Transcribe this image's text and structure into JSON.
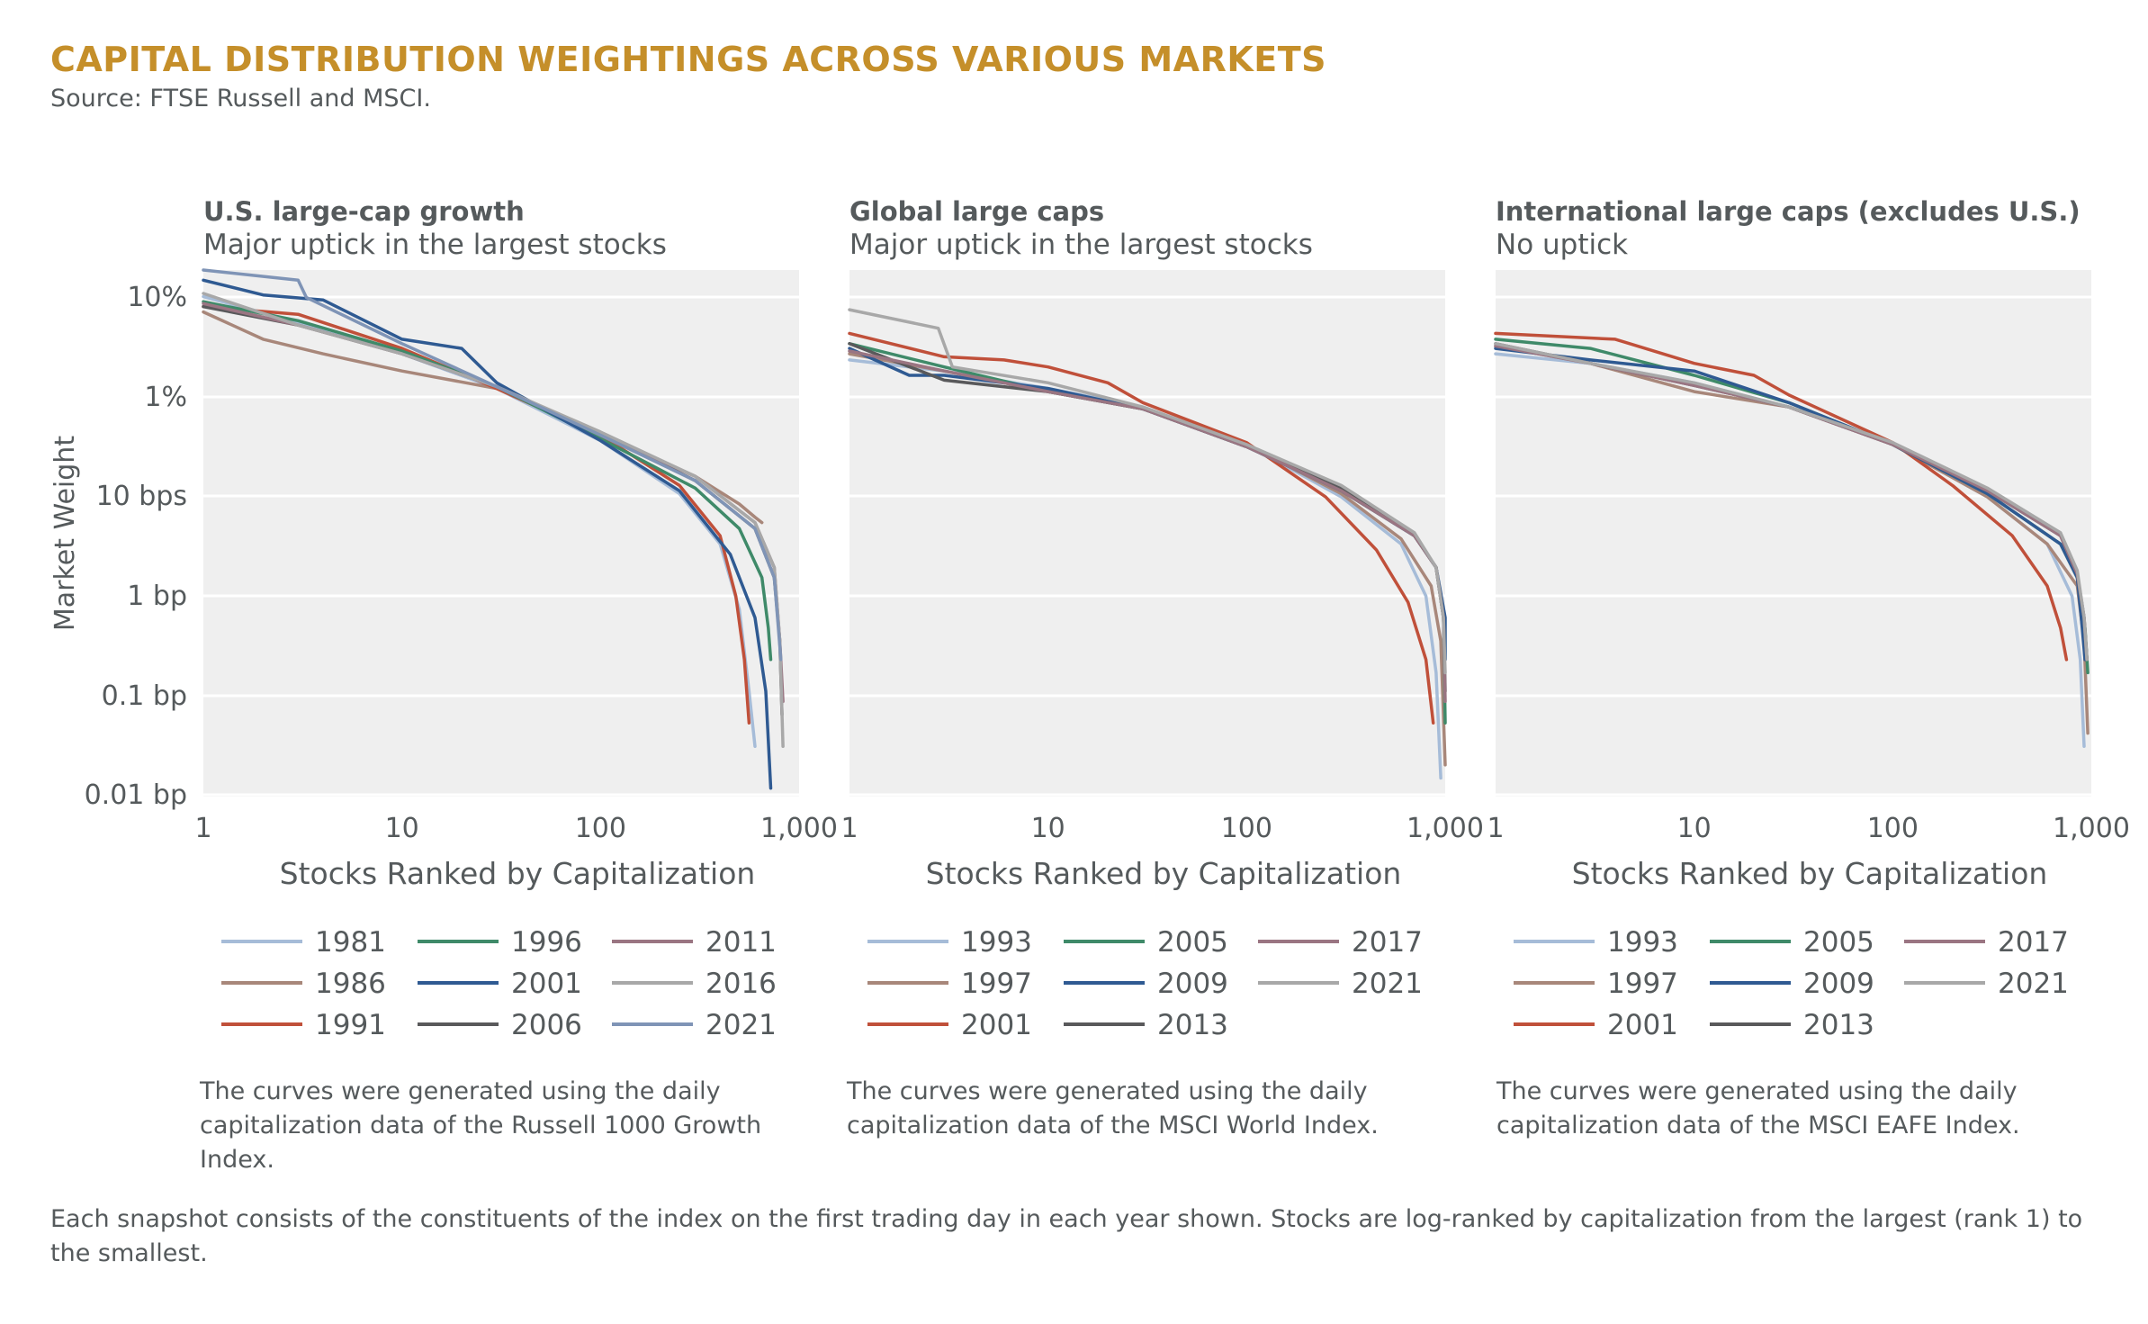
{
  "title": "CAPITAL DISTRIBUTION WEIGHTINGS ACROSS VARIOUS MARKETS",
  "source": "Source: FTSE Russell and MSCI.",
  "footnote": "Each snapshot consists of the constituents of the index on the first trading day in each year shown. Stocks are log-ranked by capitalization from the largest (rank 1) to the smallest.",
  "ylabel": "Market Weight",
  "chart_data": [
    {
      "type": "line",
      "title": "U.S. large-cap growth",
      "subtitle": "Major uptick in the largest stocks",
      "xlabel": "Stocks Ranked by Capitalization",
      "ylabel": "Market Weight",
      "xscale": "log",
      "yscale": "log",
      "xlim": [
        1,
        1000
      ],
      "ylim": [
        1e-06,
        0.1
      ],
      "x_ticks": [
        "1",
        "10",
        "100",
        "1,000"
      ],
      "y_ticks": [
        "10%",
        "1%",
        "10 bps",
        "1 bp",
        "0.1 bp",
        "0.01 bp"
      ],
      "legend_position": "bottom",
      "caption": "The curves were generated using the daily capitalization data of the Russell 1000 Growth Index.",
      "series": [
        {
          "name": "1981",
          "color": "#a6bcd8",
          "x": [
            1,
            3,
            10,
            30,
            100,
            250,
            400,
            500,
            560,
            600
          ],
          "y": [
            0.056,
            0.032,
            0.016,
            0.0075,
            0.0024,
            0.00075,
            0.00025,
            6e-05,
            1e-05,
            3e-06
          ]
        },
        {
          "name": "1986",
          "color": "#a8877a",
          "x": [
            1,
            2,
            4,
            10,
            30,
            100,
            300,
            500,
            600,
            650
          ],
          "y": [
            0.04,
            0.022,
            0.016,
            0.011,
            0.0075,
            0.0028,
            0.0011,
            0.0006,
            0.00045,
            0.0004
          ]
        },
        {
          "name": "1991",
          "color": "#c0503a",
          "x": [
            1,
            3,
            10,
            30,
            100,
            250,
            400,
            480,
            530,
            560
          ],
          "y": [
            0.045,
            0.038,
            0.018,
            0.0075,
            0.0027,
            0.0009,
            0.0003,
            8e-05,
            2e-05,
            5e-06
          ]
        },
        {
          "name": "1996",
          "color": "#3f8a69",
          "x": [
            1,
            3,
            10,
            30,
            100,
            300,
            500,
            650,
            700,
            720
          ],
          "y": [
            0.05,
            0.033,
            0.017,
            0.0078,
            0.0025,
            0.00085,
            0.00035,
            0.00012,
            4e-05,
            2e-05
          ]
        },
        {
          "name": "2001",
          "color": "#2f5a92",
          "x": [
            1,
            2,
            4,
            10,
            20,
            30,
            100,
            250,
            450,
            600,
            680,
            720
          ],
          "y": [
            0.08,
            0.058,
            0.052,
            0.022,
            0.018,
            0.0085,
            0.0024,
            0.0008,
            0.0002,
            5e-05,
            1e-05,
            1.2e-06
          ]
        },
        {
          "name": "2006",
          "color": "#59595b",
          "x": [
            1,
            3,
            10,
            30,
            100,
            300,
            600,
            750,
            800,
            820
          ],
          "y": [
            0.045,
            0.03,
            0.016,
            0.0078,
            0.0028,
            0.001,
            0.00035,
            0.00012,
            3e-05,
            6e-06
          ]
        },
        {
          "name": "2011",
          "color": "#9a7582",
          "x": [
            1,
            3,
            10,
            30,
            100,
            300,
            600,
            750,
            800,
            830
          ],
          "y": [
            0.048,
            0.03,
            0.016,
            0.0078,
            0.0028,
            0.0011,
            0.0004,
            0.00015,
            3e-05,
            8e-06
          ]
        },
        {
          "name": "2016",
          "color": "#a8a8a8",
          "x": [
            1,
            3,
            10,
            30,
            100,
            300,
            600,
            750,
            800,
            830
          ],
          "y": [
            0.06,
            0.03,
            0.016,
            0.0078,
            0.0029,
            0.0011,
            0.0004,
            0.00015,
            3e-05,
            3e-06
          ]
        },
        {
          "name": "2021",
          "color": "#7f94b6",
          "x": [
            1,
            3,
            3.3,
            10,
            30,
            100,
            300,
            600,
            750,
            810
          ],
          "y": [
            0.12,
            0.08,
            0.055,
            0.02,
            0.0078,
            0.0027,
            0.001,
            0.00035,
            0.00012,
            2e-05
          ]
        }
      ]
    },
    {
      "type": "line",
      "title": "Global large caps",
      "subtitle": "Major uptick in the largest stocks",
      "xlabel": "Stocks Ranked by Capitalization",
      "xscale": "log",
      "yscale": "log",
      "xlim": [
        1,
        1000
      ],
      "ylim": [
        1e-06,
        0.1
      ],
      "x_ticks": [
        "1",
        "10",
        "100",
        "1,000"
      ],
      "legend_position": "bottom",
      "caption": "The curves were generated using the daily capitalization data of the MSCI World Index.",
      "series": [
        {
          "name": "1993",
          "color": "#a6bcd8",
          "x": [
            1,
            3,
            10,
            30,
            100,
            300,
            600,
            800,
            900,
            950
          ],
          "y": [
            0.014,
            0.011,
            0.0075,
            0.005,
            0.0022,
            0.0007,
            0.00025,
            8e-05,
            1.5e-05,
            1.5e-06
          ]
        },
        {
          "name": "1997",
          "color": "#a8877a",
          "x": [
            1,
            3,
            10,
            30,
            100,
            300,
            600,
            850,
            950,
            1000
          ],
          "y": [
            0.016,
            0.011,
            0.007,
            0.0048,
            0.0022,
            0.00075,
            0.00028,
            0.0001,
            3e-05,
            2e-06
          ]
        },
        {
          "name": "2001",
          "color": "#c0503a",
          "x": [
            1,
            3,
            6,
            10,
            20,
            30,
            100,
            250,
            450,
            650,
            800,
            870
          ],
          "y": [
            0.025,
            0.015,
            0.014,
            0.012,
            0.0085,
            0.0055,
            0.0023,
            0.0007,
            0.00022,
            7e-05,
            2e-05,
            5e-06
          ]
        },
        {
          "name": "2005",
          "color": "#3f8a69",
          "x": [
            1,
            3,
            10,
            30,
            100,
            300,
            700,
            900,
            980,
            1030
          ],
          "y": [
            0.02,
            0.012,
            0.007,
            0.0048,
            0.0021,
            0.0008,
            0.0003,
            0.00015,
            5e-05,
            5e-06
          ]
        },
        {
          "name": "2009",
          "color": "#2f5a92",
          "x": [
            1,
            2,
            3,
            10,
            30,
            100,
            300,
            700,
            900,
            1000,
            1020
          ],
          "y": [
            0.018,
            0.01,
            0.01,
            0.0075,
            0.0048,
            0.0021,
            0.0008,
            0.0003,
            0.00015,
            5e-05,
            2e-05
          ]
        },
        {
          "name": "2013",
          "color": "#59595b",
          "x": [
            1,
            3,
            10,
            30,
            100,
            300,
            700,
            900,
            980,
            1010
          ],
          "y": [
            0.02,
            0.009,
            0.007,
            0.0048,
            0.0021,
            0.00085,
            0.0003,
            0.00015,
            5e-05,
            1e-05
          ]
        },
        {
          "name": "2017",
          "color": "#9a7582",
          "x": [
            1,
            3,
            10,
            30,
            100,
            300,
            700,
            900,
            980,
            1010
          ],
          "y": [
            0.017,
            0.011,
            0.007,
            0.0048,
            0.0021,
            0.0008,
            0.0003,
            0.00015,
            5e-05,
            8e-06
          ]
        },
        {
          "name": "2021",
          "color": "#a8a8a8",
          "x": [
            1,
            2.8,
            3.3,
            10,
            30,
            100,
            300,
            700,
            900,
            980,
            1010
          ],
          "y": [
            0.042,
            0.028,
            0.012,
            0.0085,
            0.005,
            0.0022,
            0.0009,
            0.00032,
            0.00015,
            5e-05,
            1.5e-05
          ]
        }
      ]
    },
    {
      "type": "line",
      "title": "International large caps (excludes U.S.)",
      "subtitle": "No uptick",
      "xlabel": "Stocks Ranked by Capitalization",
      "xscale": "log",
      "yscale": "log",
      "xlim": [
        1,
        1000
      ],
      "ylim": [
        1e-06,
        0.1
      ],
      "x_ticks": [
        "1",
        "10",
        "100",
        "1,000"
      ],
      "legend_position": "bottom",
      "caption": "The curves were generated using the daily capitalization data of the MSCI EAFE Index.",
      "series": [
        {
          "name": "1993",
          "color": "#a6bcd8",
          "x": [
            1,
            3,
            10,
            30,
            100,
            300,
            600,
            800,
            880,
            920
          ],
          "y": [
            0.016,
            0.013,
            0.0085,
            0.005,
            0.0022,
            0.0007,
            0.00025,
            8e-05,
            2e-05,
            3e-06
          ]
        },
        {
          "name": "1997",
          "color": "#a8877a",
          "x": [
            1,
            3,
            10,
            30,
            100,
            300,
            600,
            850,
            920,
            960
          ],
          "y": [
            0.019,
            0.013,
            0.007,
            0.005,
            0.0022,
            0.0007,
            0.00025,
            0.0001,
            3e-05,
            4e-06
          ]
        },
        {
          "name": "2001",
          "color": "#c0503a",
          "x": [
            1,
            4,
            10,
            20,
            30,
            100,
            200,
            400,
            600,
            700,
            750
          ],
          "y": [
            0.025,
            0.022,
            0.013,
            0.01,
            0.0065,
            0.0023,
            0.0009,
            0.0003,
            0.0001,
            4e-05,
            2e-05
          ]
        },
        {
          "name": "2005",
          "color": "#3f8a69",
          "x": [
            1,
            3,
            10,
            30,
            100,
            300,
            700,
            850,
            930,
            960
          ],
          "y": [
            0.022,
            0.018,
            0.01,
            0.0055,
            0.0022,
            0.00075,
            0.00025,
            0.00012,
            4e-05,
            1.5e-05
          ]
        },
        {
          "name": "2009",
          "color": "#2f5a92",
          "x": [
            1,
            3,
            10,
            30,
            100,
            300,
            700,
            850,
            900,
            930
          ],
          "y": [
            0.018,
            0.014,
            0.011,
            0.0055,
            0.0022,
            0.00075,
            0.00025,
            0.00012,
            4e-05,
            2e-05
          ]
        },
        {
          "name": "2013",
          "color": "#59595b",
          "x": [
            1,
            3,
            10,
            30,
            100,
            300,
            700,
            850,
            920,
            950
          ],
          "y": [
            0.02,
            0.013,
            0.008,
            0.005,
            0.0022,
            0.0008,
            0.0003,
            0.00013,
            5e-05,
            2e-05
          ]
        },
        {
          "name": "2017",
          "color": "#9a7582",
          "x": [
            1,
            3,
            10,
            30,
            100,
            300,
            700,
            850,
            920,
            950
          ],
          "y": [
            0.019,
            0.013,
            0.008,
            0.005,
            0.0022,
            0.0008,
            0.0003,
            0.00013,
            5e-05,
            2e-05
          ]
        },
        {
          "name": "2021",
          "color": "#a8a8a8",
          "x": [
            1,
            3,
            10,
            30,
            100,
            300,
            700,
            850,
            920,
            950
          ],
          "y": [
            0.02,
            0.013,
            0.0085,
            0.005,
            0.0023,
            0.00085,
            0.00032,
            0.00014,
            5e-05,
            2e-05
          ]
        }
      ]
    }
  ]
}
